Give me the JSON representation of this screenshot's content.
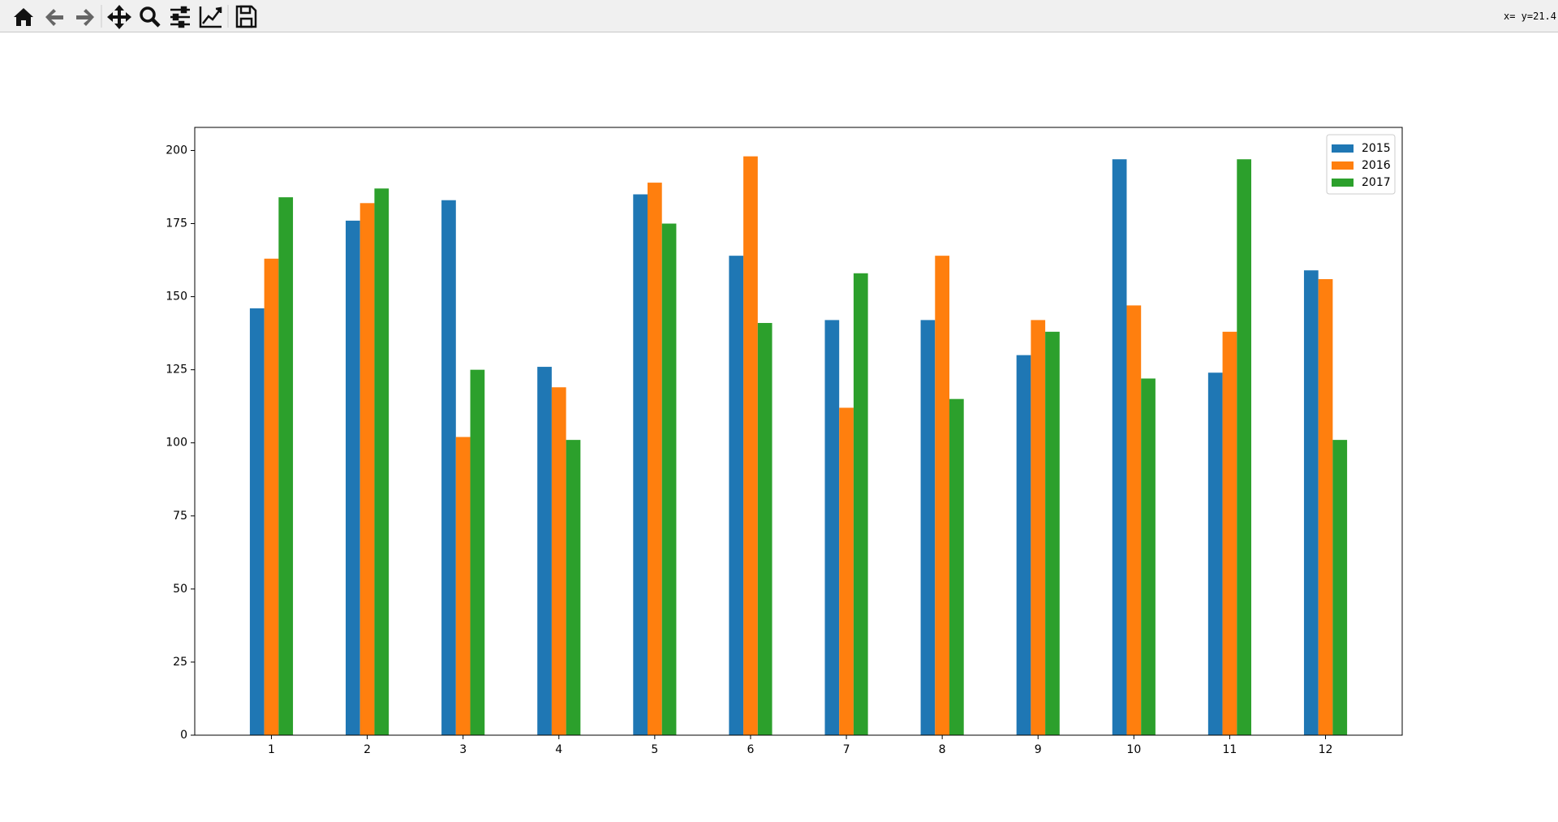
{
  "toolbar": {
    "status": "x= y=21.4"
  },
  "chart_data": {
    "type": "bar",
    "categories": [
      "1",
      "2",
      "3",
      "4",
      "5",
      "6",
      "7",
      "8",
      "9",
      "10",
      "11",
      "12"
    ],
    "series": [
      {
        "name": "2015",
        "color": "#1f77b4",
        "values": [
          146,
          176,
          183,
          126,
          185,
          164,
          142,
          142,
          130,
          197,
          124,
          159
        ]
      },
      {
        "name": "2016",
        "color": "#ff7f0e",
        "values": [
          163,
          182,
          102,
          119,
          189,
          198,
          112,
          164,
          142,
          147,
          138,
          156
        ]
      },
      {
        "name": "2017",
        "color": "#2ca02c",
        "values": [
          184,
          187,
          125,
          101,
          175,
          141,
          158,
          115,
          138,
          122,
          197,
          101
        ]
      }
    ],
    "ylim": [
      0,
      207.9
    ],
    "yticks": [
      0,
      25,
      50,
      75,
      100,
      125,
      150,
      175,
      200
    ],
    "legend": "upper right"
  }
}
